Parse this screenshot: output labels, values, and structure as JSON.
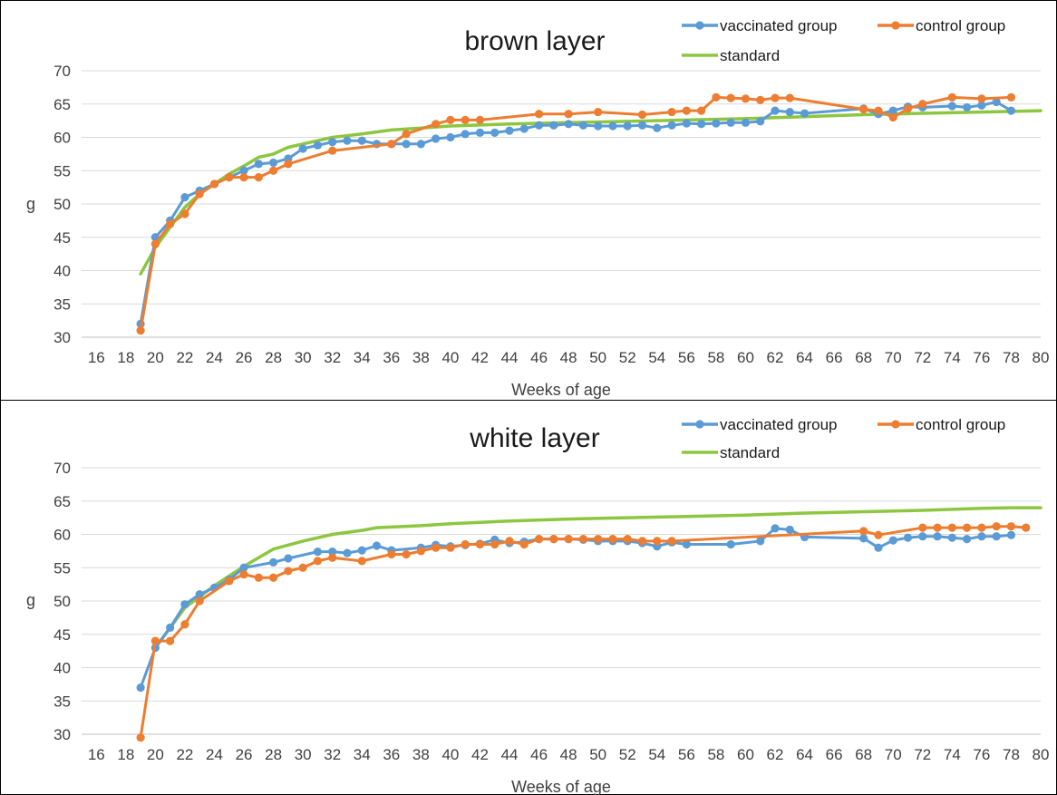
{
  "chart_data": [
    {
      "type": "line",
      "title": "brown layer",
      "xlabel": "Weeks of age",
      "ylabel": "g",
      "xlim": [
        15,
        80
      ],
      "ylim": [
        30,
        70
      ],
      "xticks": [
        16,
        18,
        20,
        22,
        24,
        26,
        28,
        30,
        32,
        34,
        36,
        38,
        40,
        42,
        44,
        46,
        48,
        50,
        52,
        54,
        56,
        58,
        60,
        62,
        64,
        66,
        68,
        70,
        72,
        74,
        76,
        78,
        80
      ],
      "yticks": [
        30,
        35,
        40,
        45,
        50,
        55,
        60,
        65,
        70
      ],
      "grid": true,
      "legend_position": "top-right",
      "series": [
        {
          "name": "vaccinated group",
          "color": "#5b9bd5",
          "markers": true,
          "points": [
            [
              19,
              32
            ],
            [
              20,
              45
            ],
            [
              21,
              47.5
            ],
            [
              22,
              51
            ],
            [
              23,
              52
            ],
            [
              24,
              53
            ],
            [
              25,
              54
            ],
            [
              26,
              55
            ],
            [
              27,
              56
            ],
            [
              28,
              56.2
            ],
            [
              29,
              56.8
            ],
            [
              30,
              58.3
            ],
            [
              31,
              58.8
            ],
            [
              32,
              59.3
            ],
            [
              33,
              59.5
            ],
            [
              34,
              59.5
            ],
            [
              35,
              59
            ],
            [
              36,
              59
            ],
            [
              37,
              59
            ],
            [
              38,
              59
            ],
            [
              39,
              59.8
            ],
            [
              40,
              60
            ],
            [
              41,
              60.5
            ],
            [
              42,
              60.7
            ],
            [
              43,
              60.7
            ],
            [
              44,
              61
            ],
            [
              45,
              61.3
            ],
            [
              46,
              61.8
            ],
            [
              47,
              61.8
            ],
            [
              48,
              62
            ],
            [
              49,
              61.8
            ],
            [
              50,
              61.7
            ],
            [
              51,
              61.7
            ],
            [
              52,
              61.7
            ],
            [
              53,
              61.8
            ],
            [
              54,
              61.4
            ],
            [
              55,
              61.8
            ],
            [
              56,
              62.1
            ],
            [
              57,
              62
            ],
            [
              58,
              62.1
            ],
            [
              59,
              62.2
            ],
            [
              60,
              62.2
            ],
            [
              61,
              62.4
            ],
            [
              62,
              64
            ],
            [
              63,
              63.8
            ],
            [
              64,
              63.6
            ],
            [
              68,
              64.3
            ],
            [
              69,
              63.5
            ],
            [
              70,
              64
            ],
            [
              71,
              64.6
            ],
            [
              72,
              64.5
            ],
            [
              74,
              64.7
            ],
            [
              75,
              64.5
            ],
            [
              76,
              64.8
            ],
            [
              77,
              65.3
            ],
            [
              78,
              64
            ]
          ]
        },
        {
          "name": "control group",
          "color": "#ed7d31",
          "markers": true,
          "points": [
            [
              19,
              31
            ],
            [
              20,
              44
            ],
            [
              21,
              47
            ],
            [
              22,
              48.5
            ],
            [
              23,
              51.5
            ],
            [
              24,
              53
            ],
            [
              25,
              54
            ],
            [
              26,
              54
            ],
            [
              27,
              54
            ],
            [
              28,
              55
            ],
            [
              29,
              56
            ],
            [
              32,
              58
            ],
            [
              36,
              59
            ],
            [
              37,
              60.5
            ],
            [
              39,
              62
            ],
            [
              40,
              62.6
            ],
            [
              41,
              62.6
            ],
            [
              42,
              62.6
            ],
            [
              46,
              63.5
            ],
            [
              48,
              63.5
            ],
            [
              50,
              63.8
            ],
            [
              53,
              63.4
            ],
            [
              55,
              63.8
            ],
            [
              56,
              64
            ],
            [
              57,
              64
            ],
            [
              58,
              66
            ],
            [
              59,
              65.9
            ],
            [
              60,
              65.8
            ],
            [
              61,
              65.6
            ],
            [
              62,
              65.9
            ],
            [
              63,
              65.9
            ],
            [
              68,
              64.2
            ],
            [
              69,
              64
            ],
            [
              70,
              63
            ],
            [
              71,
              64.3
            ],
            [
              72,
              65
            ],
            [
              74,
              66
            ],
            [
              76,
              65.8
            ],
            [
              78,
              66
            ]
          ]
        },
        {
          "name": "standard",
          "color": "#8dc63f",
          "markers": false,
          "points": [
            [
              19,
              39.5
            ],
            [
              20,
              43.5
            ],
            [
              21,
              46.5
            ],
            [
              22,
              49.5
            ],
            [
              23,
              51.5
            ],
            [
              24,
              53
            ],
            [
              25,
              54.5
            ],
            [
              26,
              55.7
            ],
            [
              27,
              57
            ],
            [
              28,
              57.5
            ],
            [
              29,
              58.5
            ],
            [
              30,
              59
            ],
            [
              32,
              60
            ],
            [
              34,
              60.5
            ],
            [
              36,
              61.1
            ],
            [
              38,
              61.4
            ],
            [
              40,
              61.7
            ],
            [
              44,
              62
            ],
            [
              48,
              62.2
            ],
            [
              52,
              62.4
            ],
            [
              56,
              62.6
            ],
            [
              60,
              62.8
            ],
            [
              64,
              63.1
            ],
            [
              68,
              63.4
            ],
            [
              72,
              63.6
            ],
            [
              76,
              63.8
            ],
            [
              80,
              64
            ]
          ]
        }
      ]
    },
    {
      "type": "line",
      "title": "white layer",
      "xlabel": "Weeks of age",
      "ylabel": "g",
      "xlim": [
        15,
        80
      ],
      "ylim": [
        30,
        70
      ],
      "xticks": [
        16,
        18,
        20,
        22,
        24,
        26,
        28,
        30,
        32,
        34,
        36,
        38,
        40,
        42,
        44,
        46,
        48,
        50,
        52,
        54,
        56,
        58,
        60,
        62,
        64,
        66,
        68,
        70,
        72,
        74,
        76,
        78,
        80
      ],
      "yticks": [
        30,
        35,
        40,
        45,
        50,
        55,
        60,
        65,
        70
      ],
      "grid": true,
      "legend_position": "top-right",
      "series": [
        {
          "name": "vaccinated group",
          "color": "#5b9bd5",
          "markers": true,
          "points": [
            [
              19,
              37
            ],
            [
              20,
              43
            ],
            [
              21,
              46
            ],
            [
              22,
              49.5
            ],
            [
              23,
              51
            ],
            [
              24,
              52
            ],
            [
              25,
              53.2
            ],
            [
              26,
              55
            ],
            [
              28,
              55.8
            ],
            [
              29,
              56.4
            ],
            [
              31,
              57.4
            ],
            [
              32,
              57.4
            ],
            [
              33,
              57.2
            ],
            [
              34,
              57.6
            ],
            [
              35,
              58.3
            ],
            [
              36,
              57.6
            ],
            [
              38,
              58
            ],
            [
              39,
              58.4
            ],
            [
              40,
              58.2
            ],
            [
              41,
              58.4
            ],
            [
              42,
              58.6
            ],
            [
              43,
              59.2
            ],
            [
              44,
              58.7
            ],
            [
              45,
              58.9
            ],
            [
              46,
              59.3
            ],
            [
              47,
              59.3
            ],
            [
              48,
              59.3
            ],
            [
              49,
              59.2
            ],
            [
              50,
              59
            ],
            [
              51,
              59
            ],
            [
              52,
              59
            ],
            [
              53,
              58.7
            ],
            [
              54,
              58.2
            ],
            [
              55,
              58.8
            ],
            [
              56,
              58.5
            ],
            [
              59,
              58.5
            ],
            [
              61,
              59
            ],
            [
              62,
              60.9
            ],
            [
              63,
              60.7
            ],
            [
              64,
              59.6
            ],
            [
              68,
              59.4
            ],
            [
              69,
              58
            ],
            [
              70,
              59.1
            ],
            [
              71,
              59.5
            ],
            [
              72,
              59.7
            ],
            [
              73,
              59.7
            ],
            [
              74,
              59.5
            ],
            [
              75,
              59.3
            ],
            [
              76,
              59.7
            ],
            [
              77,
              59.7
            ],
            [
              78,
              59.9
            ]
          ]
        },
        {
          "name": "control group",
          "color": "#ed7d31",
          "markers": true,
          "points": [
            [
              19,
              29.5
            ],
            [
              20,
              44
            ],
            [
              21,
              44
            ],
            [
              22,
              46.5
            ],
            [
              23,
              50
            ],
            [
              25,
              53
            ],
            [
              26,
              54
            ],
            [
              27,
              53.5
            ],
            [
              28,
              53.5
            ],
            [
              29,
              54.5
            ],
            [
              30,
              55
            ],
            [
              31,
              56
            ],
            [
              32,
              56.5
            ],
            [
              34,
              56
            ],
            [
              36,
              57
            ],
            [
              37,
              57
            ],
            [
              38,
              57.5
            ],
            [
              39,
              58
            ],
            [
              40,
              58
            ],
            [
              41,
              58.5
            ],
            [
              42,
              58.5
            ],
            [
              43,
              58.5
            ],
            [
              44,
              59
            ],
            [
              45,
              58.5
            ],
            [
              46,
              59.3
            ],
            [
              47,
              59.3
            ],
            [
              48,
              59.3
            ],
            [
              49,
              59.3
            ],
            [
              50,
              59.3
            ],
            [
              51,
              59.3
            ],
            [
              52,
              59.3
            ],
            [
              53,
              59
            ],
            [
              54,
              59
            ],
            [
              55,
              59
            ],
            [
              68,
              60.5
            ],
            [
              69,
              59.9
            ],
            [
              72,
              61
            ],
            [
              73,
              61
            ],
            [
              74,
              61
            ],
            [
              75,
              61
            ],
            [
              76,
              61
            ],
            [
              77,
              61.2
            ],
            [
              78,
              61.2
            ],
            [
              79,
              61
            ]
          ]
        },
        {
          "name": "standard",
          "color": "#8dc63f",
          "markers": false,
          "points": [
            [
              20,
              43
            ],
            [
              21,
              46
            ],
            [
              22,
              49
            ],
            [
              24,
              52.3
            ],
            [
              26,
              55.2
            ],
            [
              28,
              57.8
            ],
            [
              30,
              59
            ],
            [
              32,
              60
            ],
            [
              34,
              60.6
            ],
            [
              35,
              61
            ],
            [
              38,
              61.3
            ],
            [
              40,
              61.6
            ],
            [
              44,
              62
            ],
            [
              48,
              62.3
            ],
            [
              52,
              62.5
            ],
            [
              56,
              62.7
            ],
            [
              60,
              62.9
            ],
            [
              64,
              63.2
            ],
            [
              68,
              63.4
            ],
            [
              72,
              63.6
            ],
            [
              76,
              63.9
            ],
            [
              78,
              64
            ],
            [
              80,
              64
            ]
          ]
        }
      ]
    }
  ]
}
